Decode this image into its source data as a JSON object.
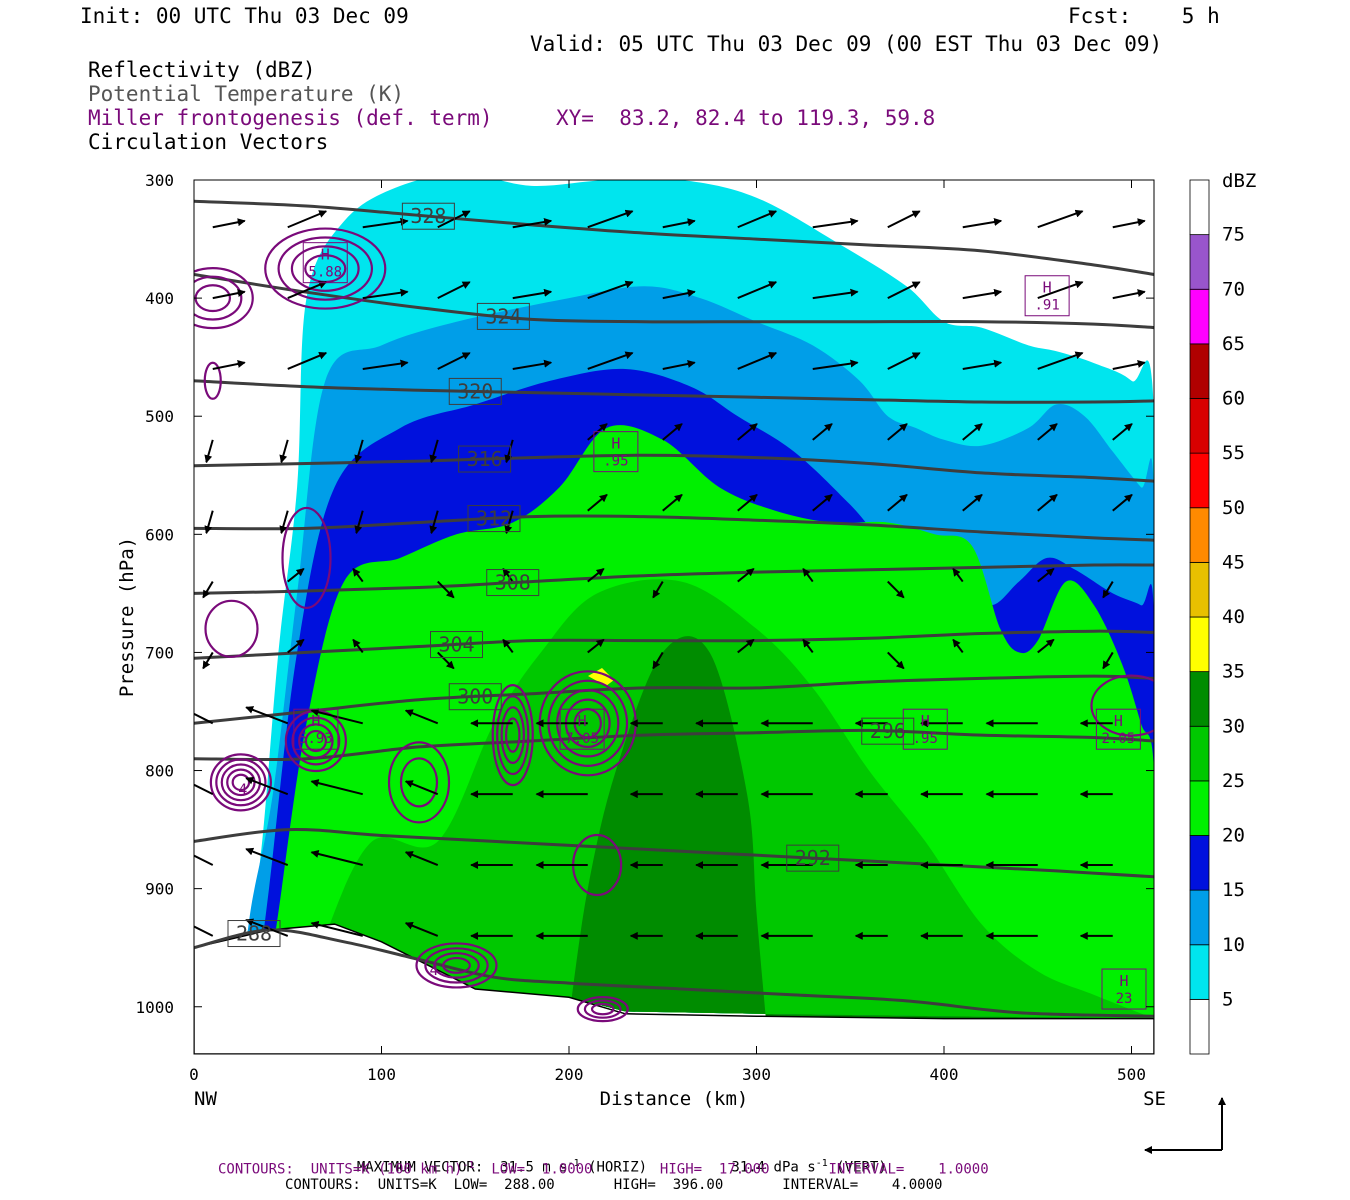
{
  "header": {
    "init": "Init: 00 UTC Thu 03 Dec 09",
    "fcst": "Fcst:    5 h",
    "valid": "Valid: 05 UTC Thu 03 Dec 09 (00 EST Thu 03 Dec 09)"
  },
  "fields": {
    "reflectivity": "Reflectivity (dBZ)",
    "theta": "Potential Temperature (K)",
    "frontogenesis": "Miller frontogenesis (def. term)",
    "xy": "XY=  83.2, 82.4 to 119.3, 59.8",
    "vectors": "Circulation Vectors"
  },
  "footer": {
    "max_vector_label": "MAXIMUM VECTOR:",
    "max_vector_horiz": "31.5 m s",
    "max_vector_horiz_unit": "(HORIZ)",
    "max_vector_vert": "31.4 dPa s",
    "max_vector_vert_unit": "(VERT)",
    "exp": "-1",
    "contours1_a": "CONTOURS:  UNITS=K (100 km h)",
    "contours1_b": "LOW=  1.0000        HIGH=  17.000       INTERVAL=    1.0000",
    "contours2": "CONTOURS:  UNITS=K  LOW=  288.00       HIGH=  396.00       INTERVAL=    4.0000"
  },
  "chart_data": {
    "type": "cross-section",
    "xlabel": "Distance (km)",
    "ylabel": "Pressure (hPa)",
    "xlim": [
      0,
      512
    ],
    "ylim": [
      1040,
      300
    ],
    "x_ticks": [
      0,
      100,
      200,
      300,
      400,
      500
    ],
    "y_ticks": [
      300,
      400,
      500,
      600,
      700,
      800,
      900,
      1000
    ],
    "x_end_labels": {
      "left": "NW",
      "right": "SE"
    },
    "colorbar": {
      "title": "dBZ",
      "levels": [
        5,
        10,
        15,
        20,
        25,
        30,
        35,
        40,
        45,
        50,
        55,
        60,
        65,
        70,
        75
      ],
      "colors": [
        "#ffffff",
        "#00e5ee",
        "#009ee8",
        "#0011dd",
        "#00f000",
        "#00c800",
        "#008c00",
        "#ffff00",
        "#e8c000",
        "#ff8a00",
        "#ff0000",
        "#d80000",
        "#b00000",
        "#ff00ff",
        "#9955cc",
        "#ffffff"
      ]
    },
    "reflectivity_bands": [
      {
        "dbz": 5,
        "color": "#00e5ee",
        "top": [
          [
            20,
            1000
          ],
          [
            25,
            960
          ],
          [
            35,
            880
          ],
          [
            45,
            700
          ],
          [
            55,
            560
          ],
          [
            60,
            400
          ],
          [
            80,
            335
          ],
          [
            110,
            305
          ],
          [
            145,
            295
          ],
          [
            180,
            305
          ],
          [
            220,
            300
          ],
          [
            260,
            300
          ],
          [
            300,
            315
          ],
          [
            345,
            355
          ],
          [
            380,
            390
          ],
          [
            400,
            420
          ],
          [
            420,
            425
          ],
          [
            445,
            440
          ],
          [
            460,
            445
          ],
          [
            480,
            455
          ],
          [
            500,
            470
          ],
          [
            512,
            500
          ],
          [
            512,
            1010
          ]
        ]
      },
      {
        "dbz": 10,
        "color": "#009ee8",
        "top": [
          [
            25,
            1000
          ],
          [
            30,
            920
          ],
          [
            42,
            820
          ],
          [
            55,
            650
          ],
          [
            70,
            470
          ],
          [
            100,
            440
          ],
          [
            140,
            420
          ],
          [
            200,
            400
          ],
          [
            240,
            390
          ],
          [
            270,
            400
          ],
          [
            300,
            420
          ],
          [
            330,
            440
          ],
          [
            355,
            470
          ],
          [
            370,
            500
          ],
          [
            385,
            510
          ],
          [
            400,
            520
          ],
          [
            420,
            525
          ],
          [
            445,
            510
          ],
          [
            460,
            490
          ],
          [
            475,
            500
          ],
          [
            490,
            530
          ],
          [
            505,
            560
          ],
          [
            512,
            570
          ],
          [
            512,
            1010
          ]
        ]
      },
      {
        "dbz": 15,
        "color": "#0011dd",
        "top": [
          [
            32,
            1000
          ],
          [
            40,
            900
          ],
          [
            55,
            700
          ],
          [
            75,
            560
          ],
          [
            110,
            510
          ],
          [
            150,
            490
          ],
          [
            190,
            470
          ],
          [
            230,
            460
          ],
          [
            265,
            475
          ],
          [
            290,
            500
          ],
          [
            320,
            530
          ],
          [
            350,
            575
          ],
          [
            370,
            610
          ],
          [
            390,
            620
          ],
          [
            410,
            640
          ],
          [
            425,
            660
          ],
          [
            440,
            640
          ],
          [
            455,
            620
          ],
          [
            470,
            630
          ],
          [
            490,
            650
          ],
          [
            505,
            660
          ],
          [
            512,
            670
          ],
          [
            512,
            1010
          ]
        ]
      },
      {
        "dbz": 20,
        "color": "#00f000",
        "top": [
          [
            38,
            1000
          ],
          [
            45,
            920
          ],
          [
            60,
            760
          ],
          [
            80,
            640
          ],
          [
            110,
            620
          ],
          [
            140,
            600
          ],
          [
            170,
            590
          ],
          [
            195,
            560
          ],
          [
            220,
            510
          ],
          [
            250,
            520
          ],
          [
            280,
            560
          ],
          [
            310,
            580
          ],
          [
            340,
            590
          ],
          [
            370,
            590
          ],
          [
            395,
            600
          ],
          [
            415,
            610
          ],
          [
            430,
            680
          ],
          [
            440,
            700
          ],
          [
            450,
            690
          ],
          [
            465,
            640
          ],
          [
            480,
            660
          ],
          [
            495,
            710
          ],
          [
            505,
            760
          ],
          [
            512,
            800
          ],
          [
            512,
            1010
          ]
        ]
      },
      {
        "dbz": 25,
        "color": "#00c800",
        "top": [
          [
            60,
            1000
          ],
          [
            70,
            940
          ],
          [
            95,
            860
          ],
          [
            130,
            860
          ],
          [
            160,
            760
          ],
          [
            185,
            700
          ],
          [
            215,
            650
          ],
          [
            260,
            640
          ],
          [
            300,
            680
          ],
          [
            330,
            730
          ],
          [
            360,
            800
          ],
          [
            390,
            860
          ],
          [
            420,
            930
          ],
          [
            450,
            970
          ],
          [
            480,
            990
          ],
          [
            512,
            1010
          ]
        ]
      },
      {
        "dbz": 30,
        "color": "#008c00",
        "top": [
          [
            200,
            1010
          ],
          [
            210,
            900
          ],
          [
            225,
            800
          ],
          [
            250,
            700
          ],
          [
            275,
            700
          ],
          [
            295,
            820
          ],
          [
            300,
            920
          ],
          [
            305,
            1010
          ]
        ]
      }
    ],
    "theta_contours": [
      {
        "label": "288",
        "points": [
          [
            0,
            950
          ],
          [
            40,
            935
          ],
          [
            80,
            945
          ],
          [
            120,
            960
          ],
          [
            160,
            975
          ],
          [
            200,
            980
          ],
          [
            260,
            985
          ],
          [
            320,
            990
          ],
          [
            380,
            995
          ],
          [
            440,
            1005
          ],
          [
            512,
            1008
          ]
        ]
      },
      {
        "label": "292",
        "points": [
          [
            0,
            860
          ],
          [
            50,
            850
          ],
          [
            100,
            855
          ],
          [
            160,
            860
          ],
          [
            220,
            865
          ],
          [
            280,
            870
          ],
          [
            340,
            875
          ],
          [
            400,
            880
          ],
          [
            460,
            885
          ],
          [
            512,
            890
          ]
        ]
      },
      {
        "label": "296",
        "points": [
          [
            0,
            790
          ],
          [
            60,
            790
          ],
          [
            120,
            780
          ],
          [
            180,
            775
          ],
          [
            240,
            770
          ],
          [
            300,
            768
          ],
          [
            360,
            766
          ],
          [
            420,
            770
          ],
          [
            480,
            772
          ],
          [
            512,
            775
          ]
        ]
      },
      {
        "label": "300",
        "points": [
          [
            0,
            760
          ],
          [
            60,
            750
          ],
          [
            120,
            740
          ],
          [
            180,
            735
          ],
          [
            240,
            730
          ],
          [
            300,
            730
          ],
          [
            360,
            725
          ],
          [
            420,
            722
          ],
          [
            480,
            720
          ],
          [
            512,
            722
          ]
        ]
      },
      {
        "label": "304",
        "points": [
          [
            0,
            705
          ],
          [
            60,
            700
          ],
          [
            120,
            695
          ],
          [
            180,
            690
          ],
          [
            240,
            690
          ],
          [
            300,
            690
          ],
          [
            360,
            688
          ],
          [
            420,
            684
          ],
          [
            480,
            682
          ],
          [
            512,
            683
          ]
        ]
      },
      {
        "label": "308",
        "points": [
          [
            0,
            650
          ],
          [
            60,
            648
          ],
          [
            120,
            645
          ],
          [
            180,
            640
          ],
          [
            240,
            635
          ],
          [
            300,
            632
          ],
          [
            360,
            630
          ],
          [
            420,
            628
          ],
          [
            480,
            626
          ],
          [
            512,
            626
          ]
        ]
      },
      {
        "label": "312",
        "points": [
          [
            0,
            595
          ],
          [
            60,
            595
          ],
          [
            120,
            590
          ],
          [
            180,
            585
          ],
          [
            240,
            585
          ],
          [
            300,
            588
          ],
          [
            360,
            592
          ],
          [
            420,
            598
          ],
          [
            480,
            603
          ],
          [
            512,
            605
          ]
        ]
      },
      {
        "label": "316",
        "points": [
          [
            0,
            542
          ],
          [
            60,
            540
          ],
          [
            120,
            538
          ],
          [
            180,
            535
          ],
          [
            240,
            533
          ],
          [
            300,
            535
          ],
          [
            360,
            540
          ],
          [
            420,
            548
          ],
          [
            480,
            552
          ],
          [
            512,
            555
          ]
        ]
      },
      {
        "label": "320",
        "points": [
          [
            0,
            470
          ],
          [
            60,
            475
          ],
          [
            120,
            478
          ],
          [
            180,
            480
          ],
          [
            240,
            482
          ],
          [
            300,
            484
          ],
          [
            360,
            486
          ],
          [
            420,
            488
          ],
          [
            480,
            488
          ],
          [
            512,
            487
          ]
        ]
      },
      {
        "label": "324",
        "points": [
          [
            0,
            380
          ],
          [
            60,
            395
          ],
          [
            120,
            408
          ],
          [
            180,
            418
          ],
          [
            240,
            420
          ],
          [
            300,
            420
          ],
          [
            360,
            420
          ],
          [
            420,
            420
          ],
          [
            480,
            422
          ],
          [
            512,
            425
          ]
        ]
      },
      {
        "label": "328",
        "points": [
          [
            0,
            318
          ],
          [
            60,
            322
          ],
          [
            120,
            330
          ],
          [
            180,
            338
          ],
          [
            240,
            345
          ],
          [
            300,
            350
          ],
          [
            360,
            355
          ],
          [
            420,
            360
          ],
          [
            480,
            372
          ],
          [
            512,
            380
          ]
        ]
      }
    ],
    "frontogenesis_maxima": [
      {
        "label": "H",
        "value": "5.88",
        "x": 70,
        "p": 370
      },
      {
        "label": "H",
        "value": ".91",
        "x": 455,
        "p": 398
      },
      {
        "label": "H",
        "value": ".95",
        "x": 225,
        "p": 530
      },
      {
        "label": "H",
        "value": "5.93",
        "x": 65,
        "p": 765
      },
      {
        "label": "H",
        "value": "7.05",
        "x": 207,
        "p": 765
      },
      {
        "label": "H",
        "value": ".95",
        "x": 390,
        "p": 765
      },
      {
        "label": "H",
        "value": "2.05",
        "x": 493,
        "p": 765
      },
      {
        "label": "H",
        "value": "23",
        "x": 496,
        "p": 985
      }
    ],
    "frontogenesis_labels": [
      {
        "value": "4",
        "x": 26,
        "p": 815
      },
      {
        "value": "4",
        "x": 128,
        "p": 968
      }
    ]
  }
}
